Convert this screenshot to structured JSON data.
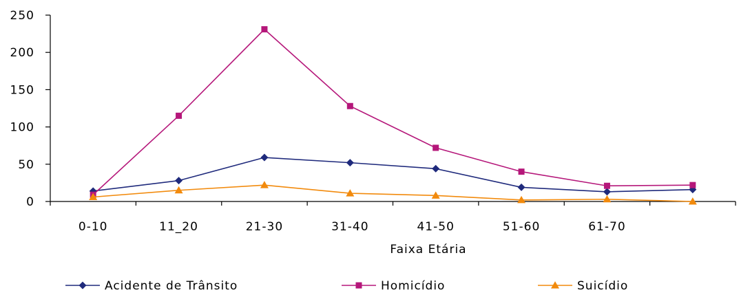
{
  "chart_data": {
    "type": "line",
    "title": "",
    "xlabel": "Faixa Etária",
    "ylabel": "",
    "ylim": [
      0,
      250
    ],
    "yticks": [
      0,
      50,
      100,
      150,
      200,
      250
    ],
    "categories": [
      "0-10",
      "11_20",
      "21-30",
      "31-40",
      "41-50",
      "51-60",
      "61-70",
      ""
    ],
    "grid": false,
    "legend_position": "bottom",
    "series": [
      {
        "name": "Acidente de Trânsito",
        "color": "#1F2A7C",
        "marker": "diamond",
        "values": [
          14,
          28,
          59,
          52,
          44,
          19,
          13,
          16
        ]
      },
      {
        "name": "Homicídio",
        "color": "#B5177A",
        "marker": "square",
        "values": [
          9,
          115,
          231,
          128,
          72,
          40,
          21,
          22
        ]
      },
      {
        "name": "Suicídio",
        "color": "#F28A0C",
        "marker": "triangle",
        "values": [
          6,
          15,
          22,
          11,
          8,
          2,
          3,
          0
        ]
      }
    ]
  }
}
